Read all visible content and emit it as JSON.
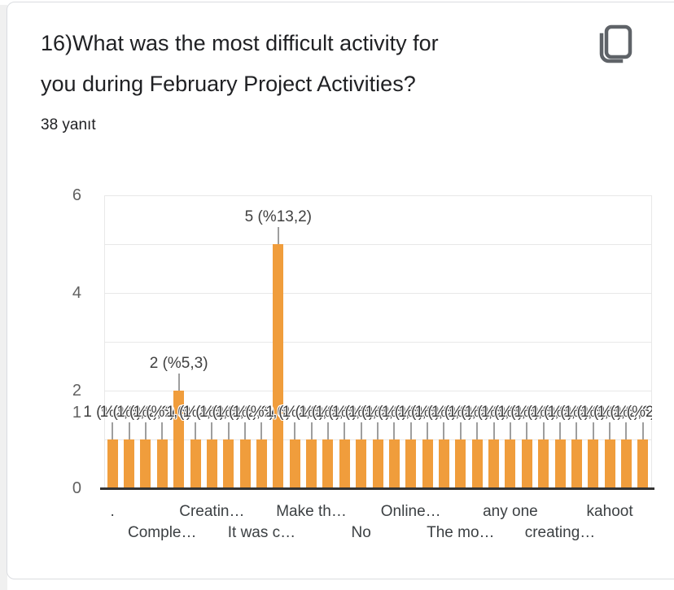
{
  "card": {
    "title_line1": "16)What was the most difficult activity for",
    "title_line2": "you during February Project Activities?",
    "response_count": "38 yanıt",
    "copy_button_icon": "copy-icon"
  },
  "colors": {
    "bar": "#F09D3C",
    "gridline": "#e8e8e8",
    "axis_baseline": "#333333",
    "y_axis_label": "#616161",
    "annotation_text": "#404040",
    "x_axis_label": "#3c4043",
    "title_text": "#202124",
    "card_border": "#dadce0",
    "icon": "#5f6368",
    "stem": "#9e9e9e"
  },
  "chart_data": {
    "type": "bar",
    "title": "16)What was the most difficult activity for you during February Project Activities?",
    "subtitle": "38 yanıt",
    "values": [
      1,
      1,
      1,
      1,
      2,
      1,
      1,
      1,
      1,
      1,
      5,
      1,
      1,
      1,
      1,
      1,
      1,
      1,
      1,
      1,
      1,
      1,
      1,
      1,
      1,
      1,
      1,
      1,
      1,
      1,
      1,
      1,
      1
    ],
    "annotations_by_value": {
      "1": "1 (%2,6)",
      "2": "2 (%5,3)",
      "5": "5 (%13,2)"
    },
    "y_axis_labels": [
      "6",
      "4",
      "2",
      "1",
      "0"
    ],
    "ylim": [
      0,
      6
    ],
    "grid_values": [
      1,
      2,
      3,
      4,
      5,
      6
    ],
    "legend_position": "none",
    "x_tick_labels": [
      {
        "bar_index": 0,
        "label": ".",
        "row": 1
      },
      {
        "bar_index": 3,
        "label": "Comple…",
        "row": 2
      },
      {
        "bar_index": 6,
        "label": "Creatin…",
        "row": 1
      },
      {
        "bar_index": 9,
        "label": "It was c…",
        "row": 2
      },
      {
        "bar_index": 12,
        "label": "Make th…",
        "row": 1
      },
      {
        "bar_index": 15,
        "label": "No",
        "row": 2
      },
      {
        "bar_index": 18,
        "label": "Online…",
        "row": 1
      },
      {
        "bar_index": 21,
        "label": "The mo…",
        "row": 2
      },
      {
        "bar_index": 24,
        "label": "any one",
        "row": 1
      },
      {
        "bar_index": 27,
        "label": "creating…",
        "row": 2
      },
      {
        "bar_index": 30,
        "label": "kahoot",
        "row": 1
      }
    ]
  }
}
